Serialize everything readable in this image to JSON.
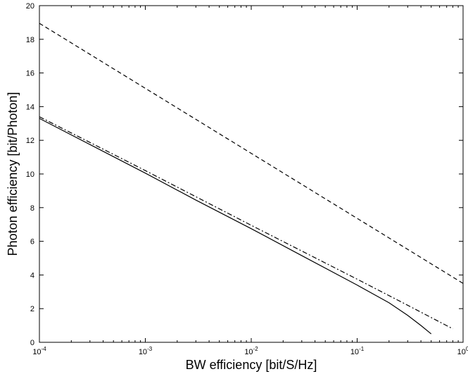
{
  "chart_data": {
    "type": "line",
    "title": "",
    "xlabel": "BW efficiency [bit/S/Hz]",
    "ylabel": "Photon efficiency [bit/Photon]",
    "xscale": "log",
    "xlim": [
      0.0001,
      1
    ],
    "ylim": [
      0,
      20
    ],
    "grid": false,
    "legend": "none",
    "x_ticks": [
      {
        "value": 0.0001,
        "base": "10",
        "exp": "-4"
      },
      {
        "value": 0.001,
        "base": "10",
        "exp": "-3"
      },
      {
        "value": 0.01,
        "base": "10",
        "exp": "-2"
      },
      {
        "value": 0.1,
        "base": "10",
        "exp": "-1"
      },
      {
        "value": 1,
        "base": "10",
        "exp": "0"
      }
    ],
    "y_ticks": [
      0,
      2,
      4,
      6,
      8,
      10,
      12,
      14,
      16,
      18,
      20
    ],
    "series": [
      {
        "style": "solid",
        "color": "#000000",
        "x": [
          0.0001,
          0.0003,
          0.001,
          0.003,
          0.01,
          0.03,
          0.1,
          0.2,
          0.3,
          0.4,
          0.5
        ],
        "y": [
          13.3,
          11.75,
          10.05,
          8.45,
          6.75,
          5.15,
          3.4,
          2.35,
          1.6,
          1.0,
          0.5
        ]
      },
      {
        "style": "dashed",
        "color": "#000000",
        "x": [
          0.0001,
          1
        ],
        "y": [
          18.95,
          3.5
        ]
      },
      {
        "style": "dashdot",
        "color": "#000000",
        "x": [
          0.0001,
          0.001,
          0.01,
          0.1,
          0.3,
          0.8
        ],
        "y": [
          13.4,
          10.2,
          6.95,
          3.75,
          2.2,
          0.8
        ]
      }
    ]
  }
}
